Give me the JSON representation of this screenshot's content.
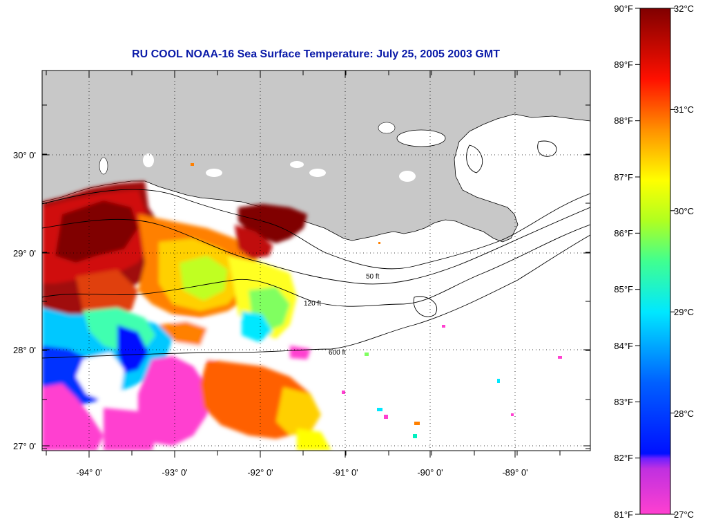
{
  "title": "RU COOL  NOAA-16  Sea Surface Temperature:  July 25, 2005 2003 GMT",
  "map": {
    "lon_range": [
      -94.55,
      -88.35
    ],
    "lat_range": [
      26.95,
      30.85
    ],
    "lat_ticks": [
      {
        "value": 30,
        "label": "30° 0'"
      },
      {
        "value": 29,
        "label": "29° 0'"
      },
      {
        "value": 28,
        "label": "28° 0'"
      },
      {
        "value": 27,
        "label": "27° 0'"
      }
    ],
    "lon_ticks": [
      {
        "value": -94,
        "label": "-94° 0'"
      },
      {
        "value": -93,
        "label": "-93° 0'"
      },
      {
        "value": -92,
        "label": "-92° 0'"
      },
      {
        "value": -91,
        "label": "-91° 0'"
      },
      {
        "value": -90,
        "label": "-90° 0'"
      },
      {
        "value": -89,
        "label": "-89° 0'"
      }
    ],
    "grid": "dotted",
    "land_color": "#c8c8c8",
    "contour_labels": [
      "50 ft",
      "120 ft",
      "600 ft"
    ]
  },
  "colorbar": {
    "fahrenheit_labels": [
      "90°F",
      "89°F",
      "88°F",
      "87°F",
      "86°F",
      "85°F",
      "84°F",
      "83°F",
      "82°F",
      "81°F"
    ],
    "celsius_labels": [
      "32°C",
      "31°C",
      "30°C",
      "29°C",
      "28°C",
      "27°C"
    ],
    "range_f": [
      81,
      90
    ],
    "range_c": [
      27,
      32
    ],
    "colors": [
      "#ff40d0",
      "#8020ff",
      "#0010ff",
      "#00a8ff",
      "#00f0f0",
      "#80ff60",
      "#ffff00",
      "#ff8000",
      "#ff0000",
      "#8b0000"
    ]
  }
}
